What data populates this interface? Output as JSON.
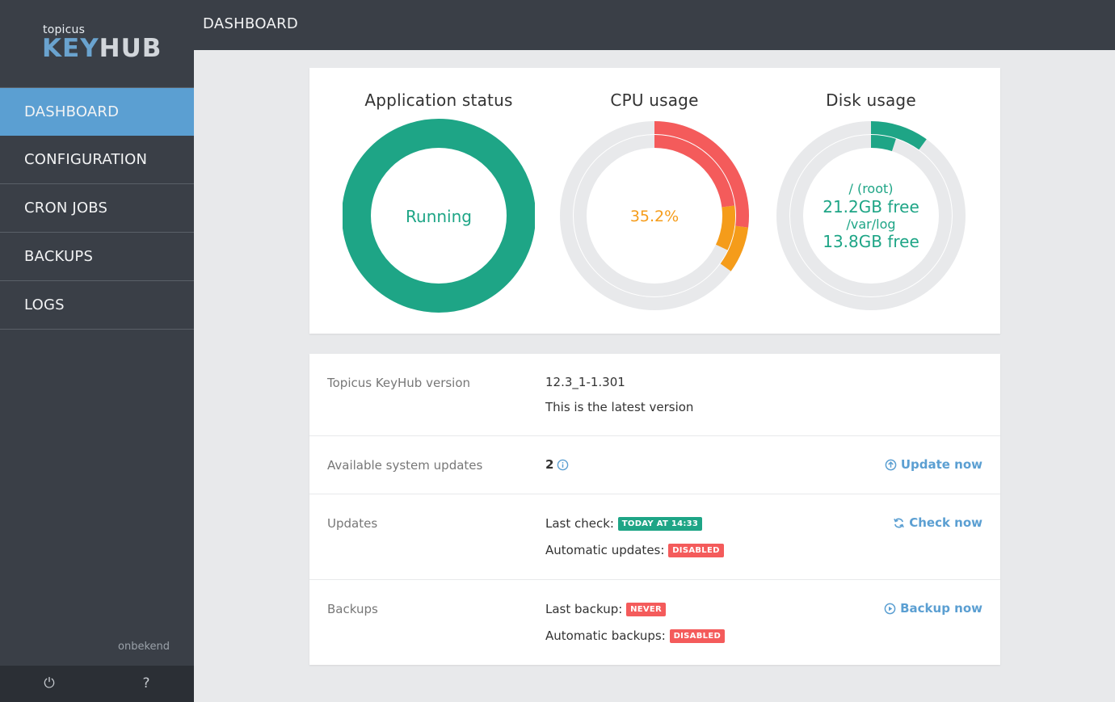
{
  "app": {
    "logo_small": "topicus",
    "logo_key": "KEY",
    "logo_hub": "HUB",
    "accent": "#5b9fd2"
  },
  "sidebar": {
    "items": [
      {
        "label": "DASHBOARD",
        "active": true
      },
      {
        "label": "CONFIGURATION",
        "active": false
      },
      {
        "label": "CRON JOBS",
        "active": false
      },
      {
        "label": "BACKUPS",
        "active": false
      },
      {
        "label": "LOGS",
        "active": false
      }
    ],
    "user": "onbekend",
    "footer": {
      "power_icon": "power-icon",
      "power_glyph": "⏻",
      "help_icon": "help-icon",
      "help_glyph": "?"
    }
  },
  "header": {
    "title": "DASHBOARD"
  },
  "gauges": {
    "app_status": {
      "title": "Application status",
      "status": "Running",
      "color": "#1ea586"
    },
    "cpu": {
      "title": "CPU usage",
      "value_text": "35.2%",
      "outer_red_fraction": 0.27,
      "outer_orange_fraction": 0.08,
      "inner_red_fraction": 0.23,
      "inner_orange_fraction": 0.09,
      "red": "#f45b5b",
      "orange": "#f59c1a"
    },
    "disk": {
      "title": "Disk usage",
      "line1": "/ (root)",
      "line2": "21.2GB free",
      "line3": "/var/log",
      "line4": "13.8GB free",
      "outer_fraction": 0.1,
      "inner_fraction": 0.05,
      "color": "#1ea586"
    }
  },
  "info": {
    "version": {
      "label": "Topicus KeyHub version",
      "value": "12.3_1-1.301",
      "note": "This is the latest version"
    },
    "system_updates": {
      "label": "Available system updates",
      "count": "2",
      "info_icon": "info-icon",
      "action": "Update now",
      "action_icon": "arrow-up-circle-icon"
    },
    "updates": {
      "label": "Updates",
      "last_check_label": "Last check:",
      "last_check_badge": "TODAY AT 14:33",
      "auto_label": "Automatic updates:",
      "auto_badge": "DISABLED",
      "action": "Check now",
      "action_icon": "refresh-icon"
    },
    "backups": {
      "label": "Backups",
      "last_label": "Last backup:",
      "last_badge": "NEVER",
      "auto_label": "Automatic backups:",
      "auto_badge": "DISABLED",
      "action": "Backup now",
      "action_icon": "play-circle-icon"
    }
  },
  "colors": {
    "green": "#1ea586",
    "red": "#f45b5b",
    "sidebar": "#3a3f47",
    "track": "#e8e9eb"
  }
}
